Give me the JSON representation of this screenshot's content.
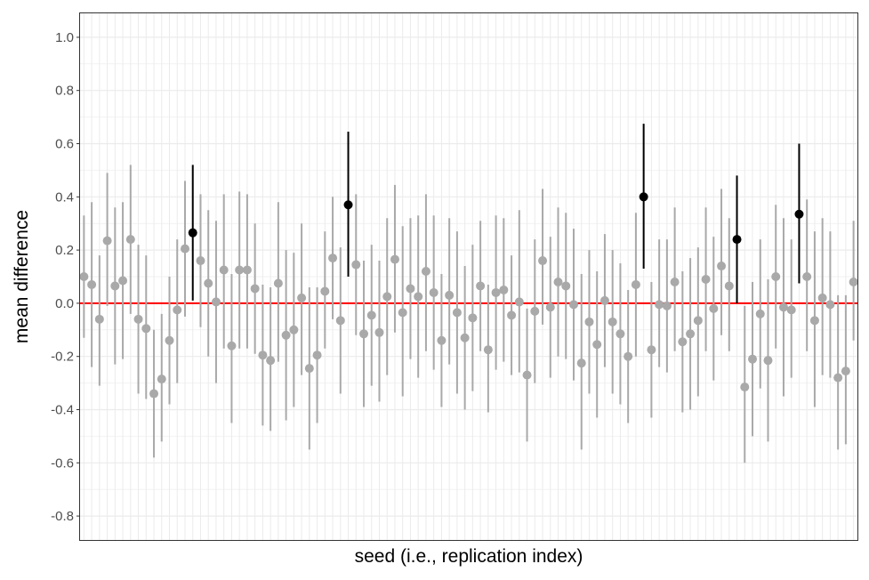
{
  "chart_data": {
    "type": "scatter",
    "title": "",
    "xlabel": "seed (i.e., replication index)",
    "ylabel": "mean difference",
    "ylim": [
      -0.89,
      1.09
    ],
    "xlim": [
      0.5,
      100.5
    ],
    "y_ticks": [
      -0.8,
      -0.6,
      -0.4,
      -0.2,
      0.0,
      0.2,
      0.4,
      0.6,
      0.8,
      1.0
    ],
    "y_tick_labels": [
      "-0.8",
      "-0.6",
      "-0.4",
      "-0.2",
      "0.0",
      "0.2",
      "0.4",
      "0.6",
      "0.8",
      "1.0"
    ],
    "x_ticks_shown": false,
    "grid": true,
    "legend": "none",
    "reference_line": {
      "y": 0,
      "color": "#ff0000"
    },
    "colors": {
      "not_significant": "#a9a9a9",
      "significant": "#000000"
    },
    "series": [
      {
        "x": [
          1,
          2,
          3,
          4,
          5,
          6,
          7,
          8,
          9,
          10,
          11,
          12,
          13,
          14,
          15,
          16,
          17,
          18,
          19,
          20,
          21,
          22,
          23,
          24,
          25,
          26,
          27,
          28,
          29,
          30,
          31,
          32,
          33,
          34,
          35,
          36,
          37,
          38,
          39,
          40,
          41,
          42,
          43,
          44,
          45,
          46,
          47,
          48,
          49,
          50,
          51,
          52,
          53,
          54,
          55,
          56,
          57,
          58,
          59,
          60,
          61,
          62,
          63,
          64,
          65,
          66,
          67,
          68,
          69,
          70,
          71,
          72,
          73,
          74,
          75,
          76,
          77,
          78,
          79,
          80,
          81,
          82,
          83,
          84,
          85,
          86,
          87,
          88,
          89,
          90,
          91,
          92,
          93,
          94,
          95,
          96,
          97,
          98,
          99,
          100
        ],
        "y": [
          0.1,
          0.07,
          -0.06,
          0.235,
          0.065,
          0.085,
          0.24,
          -0.06,
          -0.095,
          -0.34,
          -0.285,
          -0.14,
          -0.025,
          0.205,
          0.265,
          0.16,
          0.075,
          0.005,
          0.125,
          -0.16,
          0.125,
          0.125,
          0.055,
          -0.195,
          -0.215,
          0.075,
          -0.12,
          -0.1,
          0.02,
          -0.245,
          -0.195,
          0.045,
          0.17,
          -0.065,
          0.37,
          0.145,
          -0.115,
          -0.045,
          -0.11,
          0.025,
          0.165,
          -0.035,
          0.055,
          0.025,
          0.12,
          0.04,
          -0.14,
          0.03,
          -0.035,
          -0.13,
          -0.055,
          0.065,
          -0.175,
          0.04,
          0.05,
          -0.045,
          0.005,
          -0.27,
          -0.03,
          0.16,
          -0.015,
          0.08,
          0.065,
          -0.005,
          -0.225,
          -0.07,
          -0.155,
          0.01,
          -0.07,
          -0.115,
          -0.2,
          0.07,
          0.4,
          -0.175,
          -0.005,
          -0.01,
          0.08,
          -0.145,
          -0.115,
          -0.065,
          0.09,
          -0.02,
          0.14,
          0.065,
          0.24,
          -0.315,
          -0.21,
          -0.04,
          -0.215,
          0.1,
          -0.015,
          -0.025,
          0.335,
          0.1,
          -0.065,
          0.02,
          -0.005,
          -0.28,
          -0.255,
          0.08
        ],
        "lower": [
          -0.13,
          -0.24,
          -0.31,
          -0.01,
          -0.23,
          -0.21,
          -0.04,
          -0.34,
          -0.36,
          -0.58,
          -0.52,
          -0.38,
          -0.3,
          -0.05,
          0.01,
          -0.09,
          -0.2,
          -0.3,
          -0.17,
          -0.45,
          -0.17,
          -0.17,
          -0.19,
          -0.46,
          -0.48,
          -0.22,
          -0.44,
          -0.39,
          -0.27,
          -0.55,
          -0.45,
          -0.17,
          -0.06,
          -0.34,
          0.1,
          -0.12,
          -0.39,
          -0.31,
          -0.37,
          -0.27,
          -0.11,
          -0.35,
          -0.21,
          -0.28,
          -0.18,
          -0.25,
          -0.39,
          -0.23,
          -0.34,
          -0.4,
          -0.33,
          -0.18,
          -0.41,
          -0.25,
          -0.22,
          -0.27,
          -0.26,
          -0.52,
          -0.3,
          -0.08,
          -0.28,
          -0.2,
          -0.21,
          -0.29,
          -0.55,
          -0.34,
          -0.43,
          -0.24,
          -0.34,
          -0.38,
          -0.45,
          -0.2,
          0.13,
          -0.43,
          -0.24,
          -0.26,
          -0.18,
          -0.41,
          -0.4,
          -0.35,
          -0.18,
          -0.29,
          -0.12,
          -0.18,
          0.0,
          -0.6,
          -0.5,
          -0.32,
          -0.52,
          -0.17,
          -0.35,
          -0.28,
          0.075,
          -0.18,
          -0.39,
          -0.27,
          -0.28,
          -0.55,
          -0.53,
          -0.14
        ],
        "upper": [
          0.33,
          0.38,
          0.18,
          0.49,
          0.36,
          0.38,
          0.52,
          0.22,
          0.18,
          -0.1,
          -0.04,
          0.1,
          0.24,
          0.46,
          0.52,
          0.41,
          0.35,
          0.31,
          0.41,
          0.11,
          0.42,
          0.41,
          0.3,
          0.07,
          0.06,
          0.38,
          0.2,
          0.19,
          0.3,
          0.06,
          0.06,
          0.27,
          0.4,
          0.21,
          0.645,
          0.41,
          0.16,
          0.22,
          0.16,
          0.32,
          0.445,
          0.29,
          0.32,
          0.33,
          0.41,
          0.33,
          0.11,
          0.32,
          0.27,
          0.14,
          0.22,
          0.31,
          0.07,
          0.33,
          0.32,
          0.18,
          0.35,
          -0.02,
          0.24,
          0.43,
          0.25,
          0.36,
          0.34,
          0.28,
          0.11,
          0.2,
          0.12,
          0.26,
          0.2,
          0.15,
          0.05,
          0.34,
          0.675,
          0.08,
          0.24,
          0.24,
          0.36,
          0.12,
          0.17,
          0.21,
          0.36,
          0.25,
          0.43,
          0.32,
          0.48,
          -0.01,
          0.08,
          0.24,
          0.09,
          0.37,
          0.32,
          0.24,
          0.6,
          0.39,
          0.27,
          0.32,
          0.27,
          0.03,
          0.03,
          0.31
        ],
        "significant": [
          15,
          35,
          73,
          85,
          93
        ]
      }
    ]
  }
}
